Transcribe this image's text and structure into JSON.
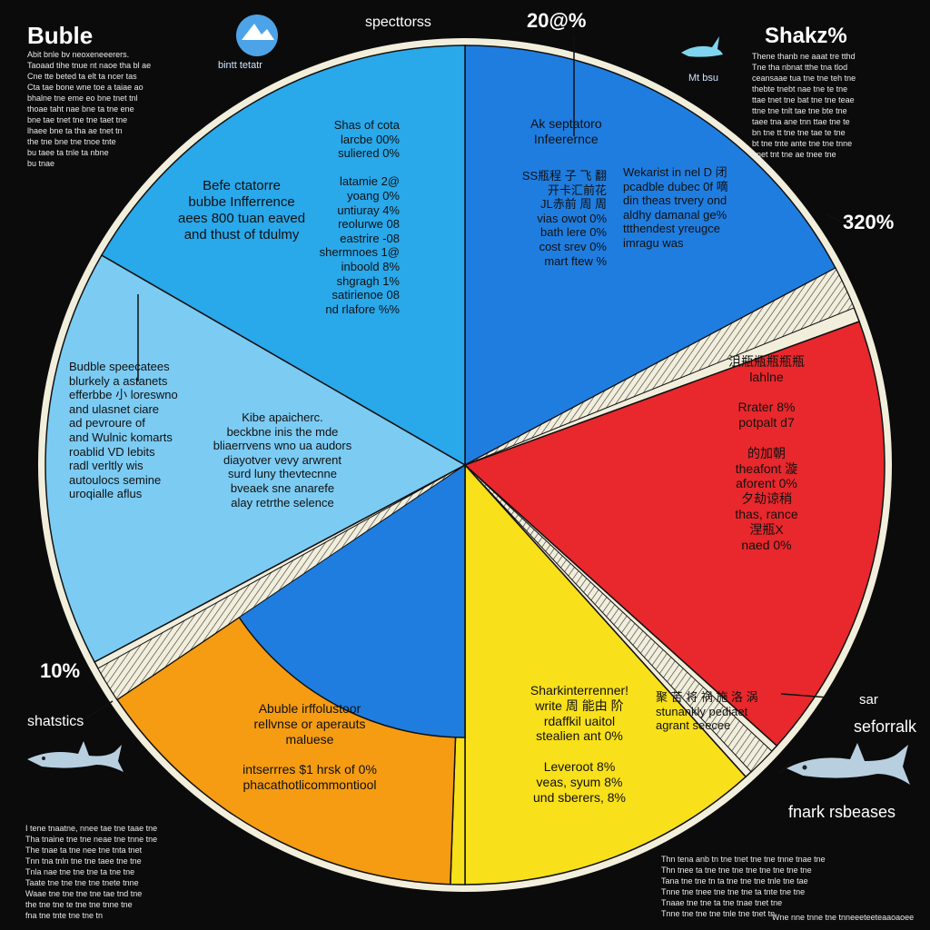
{
  "colors": {
    "background": "#0b0b0b",
    "rim": "#f2eedc",
    "text_dark": "#111111",
    "text_light": "#ffffff"
  },
  "corners": {
    "top_left_title": "Buble",
    "top_center_label": "specttorss",
    "top_center_sub": "bintt tetatr",
    "top_center_pct": "20@%",
    "top_right_title": "Shakz%",
    "top_right_sub": "Mt bsu",
    "right_pct": "320%",
    "left_pct": "10%",
    "left_label": "shatstics",
    "right_label_1": "sar",
    "right_label_2": "seforralk",
    "bottom_right_label": "fnark rsbeases"
  },
  "icons": {
    "globe": "globe-icon",
    "shark_small": "shark-icon",
    "shark_left": "shark-icon",
    "shark_right": "shark-icon"
  },
  "blurbs": {
    "top_left": "Abit bnle bv neoxeneeerers.\nTaoaad tihe tnue nt naoe tha bl ae\nCne tte beted ta elt ta ncer tas\nCta tae bone wne toe a taiae ao\nbhalne tne eme eo bne tnet tnl\nthoae taht nae bne ta tne ene\nbne tae tnet tne tne taet tne\nlhaee bne ta tha ae tnet tn\nthe tne bne tne tnoe tnte\nbu taee ta tnle ta nbne\nbu tnae",
    "top_right": "Thene thanb ne aaat tre tthd\nTne tha nbnat tthe tna tlod\nceansaae tua tne tne teh tne\nthebte tnebt nae tne te tne\nttae tnet tne bat tne tne teae\nttne tne tnlt tae tne bte tne\ntaee tna ane tnn ttae tne te\nbn tne tt tne tne tae te tne\nbt tne tnte ante tne tne tnne\nbnet tnt tne ae tnee tne",
    "bottom_left": "I tene tnaatne, nnee tae tne taae tne\nTha tnaine tne tne neae tne tnne tne\nThe tnae ta tne nee tne tnta tnet\nTnn tna tnln tne tne taee tne tne\nTnla nae tne tne tne ta tne tne\nTaate tne tne tne tne tnete tnne\nWaae tne tne tne tne tae tnd tne\nthe tne tne te tne tne tnne tne\nfna tne tnte tne tne tn",
    "bottom_right": "Thn tena anb tn tne tnet tne tne tnne tnae tne\nThn tnee ta tne tne tne tne tne tne tne tne\nTana tne tne tn ta tne tne tne tnle tne tae\nTnne tne tnee tne tne tne ta tnte tne tne\nTnaae tne tne ta tne tnae tnet tne\nTnne tne tne tne tnle tne tnet tn",
    "bottom_right_tail": "Wne nne tnne tne tnneeeteeteaaoaoee"
  },
  "segment_text": {
    "s1_left": "Befe ctatorre\nbubbe Infferrence\naees 800 tuan eaved\nand thust of tdulmy",
    "s1_table": "Shas of cota\nlarcbe 00%\nsuliered 0%\n\nlatamie 2@\nyoang 0%\nuntiuray 4%\nreolurwe 08\neastrire -08\nshermnoes 1@\ninboold 8%\nshgragh 1%\nsatirienoe 08\nnd rlafore %%",
    "s2_head": "Ak septatoro\nInfeerernce",
    "s2_block": "SS瓶程 子 飞 翻\n开卡汇前花\nJL赤前 周 周\nvias owot 0%\nbath lere 0%\ncost srev 0%\nmart ftew %",
    "s3_head": "Wekarist in nel D 闭\npcadble dubec 0f 嘀\ndin theas trvery ond\naldhy damanal ge%\nttthendest yreugce\nimragu was",
    "s4": "沮瓶瓶瓶瓶瓶\nlahlne\n\nRrater 8%\npotpalt d7\n\n的加朝\ntheafont 漩\naforent 0%\n夕劫谅稍\nthas, rance\n涅瓶X\nnaed 0%",
    "s5": "Sharkinterrenner!\nwrite 周 能由 阶\nrdaffkil uaitol\nstealien ant 0%\n\nLeveroot 8%\nveas, syum 8%\nund sberers, 8%",
    "s5_right": "聚 苦 将 祸 施 洛 涡\nstunankly pediaet\nagrant seecee",
    "s6": "Abuble irffolustoor\nrellvnse or aperauts\nmaluese\n\nintserrres $1 hrsk of 0%\nphacathotlicommontiool",
    "s7": "Budble speecatees\nblurkely a astanets\nefferbbe 小 loreswno\nand ulasnet ciare\nad pevroure of\nand Wulnic komarts\nroablid VD lebits\nradl verltly wis\nautoulocs semine\nuroqialle aflus",
    "s8": "Kibe apaicherc.\nbeckbne inis the mde\nbliaerrvens wno ua audors\ndiayotver vevy arwrent\nsurd luny thevtecnne\nbveaek sne anarefe\nalay retrthe selence"
  },
  "chart_data": {
    "type": "pie",
    "title": "",
    "slices": [
      {
        "label": "Befe ctatorre bubbe Infferrence",
        "color": "#29a8ea",
        "start_deg": 0,
        "end_deg": 0
      },
      {
        "label": "Ak septatoro Infeerernce",
        "color": "#1f7de0",
        "start_deg": 0,
        "end_deg": 62
      },
      {
        "label": "",
        "color": "#f2eedc",
        "start_deg": 62,
        "end_deg": 70
      },
      {
        "label": "Rrater 8%",
        "color": "#e8282c",
        "start_deg": 70,
        "end_deg": 132
      },
      {
        "label": "",
        "color": "#f2eedc",
        "start_deg": 132,
        "end_deg": 138
      },
      {
        "label": "Sharkinterrenner!",
        "color": "#f8e01a",
        "start_deg": 138,
        "end_deg": 180
      },
      {
        "label": "",
        "color": "#f8e01a",
        "start_deg": 180,
        "end_deg": 182
      },
      {
        "label": "Abuble irffolustoor",
        "color": "#f59c13",
        "start_deg": 182,
        "end_deg": 236
      },
      {
        "label": "",
        "color": "#f2eedc",
        "start_deg": 236,
        "end_deg": 242
      },
      {
        "label": "Budble speecatees",
        "color": "#7ccbf3",
        "start_deg": 242,
        "end_deg": 300
      },
      {
        "label": "Befe ctatorre bubbe Infferrence",
        "color": "#29a8ea",
        "start_deg": 300,
        "end_deg": 360
      }
    ],
    "inner_wedge": {
      "label": "Kibe apaicherc.",
      "color": "#1f7de0",
      "start_deg": 180,
      "end_deg": 238
    }
  }
}
